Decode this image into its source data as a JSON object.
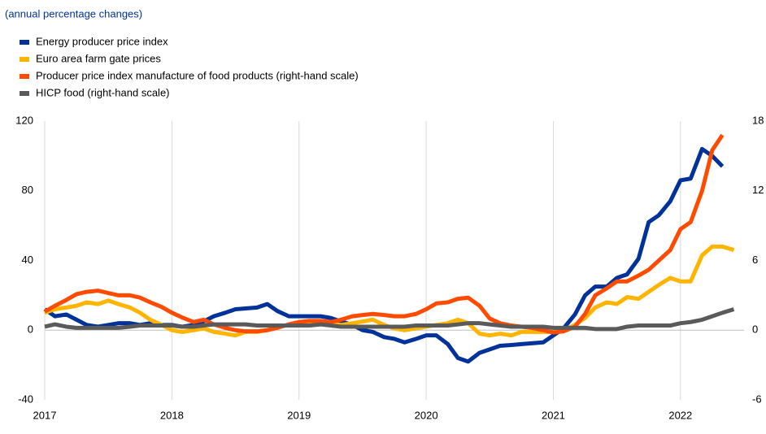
{
  "chart_data": {
    "type": "line",
    "subtitle": "(annual percentage changes)",
    "x": [
      2017,
      2017.08,
      2017.17,
      2017.25,
      2017.33,
      2017.42,
      2017.5,
      2017.58,
      2017.67,
      2017.75,
      2017.83,
      2017.92,
      2018,
      2018.08,
      2018.17,
      2018.25,
      2018.33,
      2018.42,
      2018.5,
      2018.58,
      2018.67,
      2018.75,
      2018.83,
      2018.92,
      2019,
      2019.08,
      2019.17,
      2019.25,
      2019.33,
      2019.42,
      2019.5,
      2019.58,
      2019.67,
      2019.75,
      2019.83,
      2019.92,
      2020,
      2020.08,
      2020.17,
      2020.25,
      2020.33,
      2020.42,
      2020.5,
      2020.58,
      2020.67,
      2020.75,
      2020.83,
      2020.92,
      2021,
      2021.08,
      2021.17,
      2021.25,
      2021.33,
      2021.42,
      2021.5,
      2021.58,
      2021.67,
      2021.75,
      2021.83,
      2021.92,
      2022,
      2022.08,
      2022.17,
      2022.25,
      2022.33,
      2022.42
    ],
    "series": [
      {
        "name": "Energy producer price index",
        "color": "#003299",
        "values": [
          12,
          8,
          9,
          6,
          3,
          2,
          3,
          4,
          4,
          3,
          4,
          3,
          3,
          2,
          3,
          5,
          8,
          10,
          12,
          12.5,
          13,
          15,
          11,
          8,
          8,
          8,
          8,
          7,
          5,
          3,
          0,
          -1,
          -4,
          -5,
          -7,
          -5,
          -3,
          -3,
          -8,
          -16,
          -18,
          -13,
          -11,
          -9,
          -8.5,
          -8,
          -7.5,
          -7,
          -3,
          1,
          9,
          20,
          25,
          25,
          30,
          32,
          41,
          62,
          66,
          74,
          86,
          87,
          104,
          100,
          94,
          null
        ]
      },
      {
        "name": "Euro area farm gate prices",
        "color": "#ffb400",
        "values": [
          10,
          12,
          13,
          14,
          16,
          15,
          17,
          15,
          13,
          10,
          6,
          3,
          0,
          -1,
          0,
          1,
          -1,
          -2,
          -3,
          -1,
          -1,
          0,
          2,
          3,
          4,
          5,
          5,
          4,
          3,
          4,
          5,
          6,
          3,
          1,
          0,
          1,
          2,
          3,
          4,
          6,
          4,
          -2,
          -3,
          -2,
          -3,
          -1,
          -1,
          -1,
          -1,
          0,
          3,
          7,
          13,
          16,
          15,
          19,
          18,
          22,
          26,
          30,
          28,
          28,
          43,
          48,
          48,
          46
        ]
      },
      {
        "name": "Producer price index manufacture of food products (right-hand scale)",
        "color": "#ff4b00",
        "axis": "y2",
        "values": [
          1.6,
          2.1,
          2.6,
          3.1,
          3.3,
          3.4,
          3.2,
          3.0,
          3.0,
          2.8,
          2.4,
          2.0,
          1.5,
          1.1,
          0.7,
          0.9,
          0.5,
          0.2,
          0.0,
          -0.1,
          -0.1,
          0.0,
          0.2,
          0.5,
          0.7,
          0.8,
          0.8,
          0.7,
          0.9,
          1.2,
          1.3,
          1.4,
          1.3,
          1.2,
          1.2,
          1.4,
          1.8,
          2.3,
          2.4,
          2.7,
          2.8,
          2.1,
          1.0,
          0.6,
          0.4,
          0.3,
          0.2,
          0.0,
          -0.2,
          -0.1,
          0.3,
          1.4,
          3.0,
          3.6,
          4.2,
          4.2,
          4.7,
          5.2,
          6.0,
          6.9,
          8.7,
          9.3,
          12.0,
          15.5,
          16.8,
          null
        ]
      },
      {
        "name": "HICP food (right-hand scale)",
        "color": "#5a5a5a",
        "axis": "y2",
        "values": [
          0.3,
          0.5,
          0.3,
          0.2,
          0.2,
          0.2,
          0.2,
          0.2,
          0.3,
          0.4,
          0.4,
          0.4,
          0.4,
          0.3,
          0.3,
          0.4,
          0.5,
          0.5,
          0.5,
          0.5,
          0.4,
          0.4,
          0.4,
          0.4,
          0.4,
          0.4,
          0.5,
          0.4,
          0.3,
          0.3,
          0.3,
          0.3,
          0.3,
          0.3,
          0.3,
          0.4,
          0.4,
          0.4,
          0.4,
          0.5,
          0.6,
          0.6,
          0.5,
          0.4,
          0.3,
          0.3,
          0.3,
          0.3,
          0.2,
          0.2,
          0.2,
          0.2,
          0.1,
          0.1,
          0.1,
          0.3,
          0.4,
          0.4,
          0.4,
          0.4,
          0.6,
          0.7,
          0.9,
          1.2,
          1.5,
          1.8
        ]
      }
    ],
    "xlim": [
      2017,
      2022.5
    ],
    "xticks": [
      2017,
      2018,
      2019,
      2020,
      2021,
      2022
    ],
    "ylim": [
      -40,
      120
    ],
    "yticks": [
      -40,
      0,
      40,
      80,
      120
    ],
    "y2lim": [
      -6,
      18
    ],
    "y2ticks": [
      -6,
      0,
      6,
      12,
      18
    ],
    "grid": "x",
    "legend": "top-left"
  }
}
